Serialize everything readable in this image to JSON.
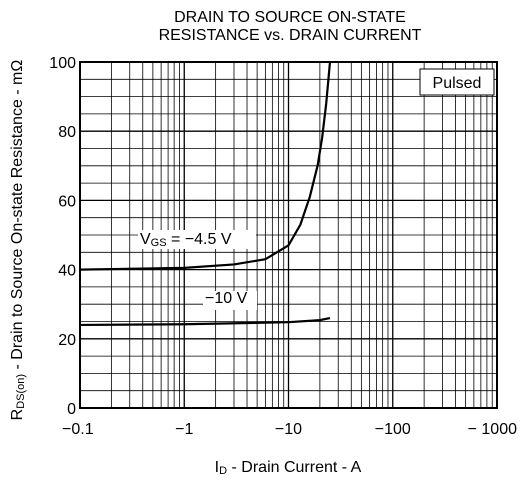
{
  "chart_data": {
    "type": "line",
    "title": [
      "DRAIN TO SOURCE ON-STATE",
      "RESISTANCE vs. DRAIN CURRENT"
    ],
    "x_label": {
      "main": "I",
      "sub": "D",
      "rest": " - Drain Current - A"
    },
    "y_label": {
      "main": "R",
      "sub": "DS(on)",
      "rest": " - Drain to Source On-state Resistance - mΩ"
    },
    "xscale": "log",
    "xlim": [
      -0.1,
      -1000
    ],
    "xticks": [
      {
        "value": -0.1,
        "label": "−0.1"
      },
      {
        "value": -1,
        "label": "−1"
      },
      {
        "value": -10,
        "label": "−10"
      },
      {
        "value": -100,
        "label": "−100"
      },
      {
        "value": -1000,
        "label": "− 1000"
      }
    ],
    "ylim": [
      0,
      100
    ],
    "yticks": [
      0,
      20,
      40,
      60,
      80,
      100
    ],
    "grid": true,
    "note": "Pulsed",
    "series": [
      {
        "label": {
          "main": "V",
          "sub": "GS",
          "rest": " = −4.5 V"
        },
        "color": "#000000",
        "x": [
          -0.1,
          -1,
          -3,
          -6,
          -10,
          -13,
          -16,
          -19,
          -21,
          -23,
          -25
        ],
        "values": [
          40,
          40.5,
          41.5,
          43,
          47,
          53,
          61,
          70,
          78,
          88,
          100
        ]
      },
      {
        "label": {
          "main": "",
          "sub": "",
          "rest": "−10 V"
        },
        "color": "#000000",
        "x": [
          -0.1,
          -1,
          -10,
          -20,
          -25
        ],
        "values": [
          24,
          24.2,
          24.8,
          25.4,
          26
        ]
      }
    ]
  }
}
